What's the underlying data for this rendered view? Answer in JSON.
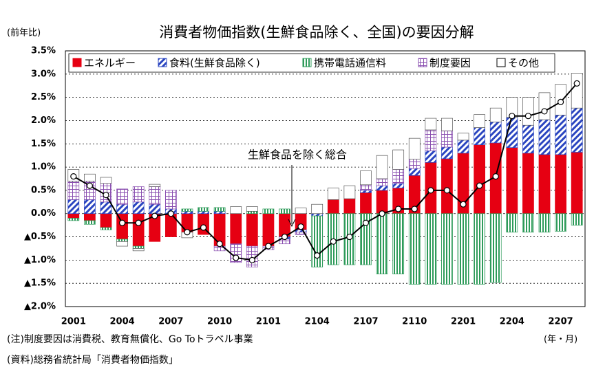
{
  "chart_data": {
    "type": "bar",
    "stacked": true,
    "title": "消費者物価指数(生鮮食品除く、全国)の要因分解",
    "y_label": "(前年比)",
    "x_label": "(年・月)",
    "categories": [
      "2001",
      null,
      null,
      "2004",
      null,
      null,
      "2007",
      null,
      null,
      "2010",
      null,
      null,
      "2101",
      null,
      null,
      "2104",
      null,
      null,
      "2107",
      null,
      null,
      "2110",
      null,
      null,
      "2201",
      null,
      null,
      "2204",
      null,
      null,
      "2207",
      null
    ],
    "series": [
      {
        "name": "エネルギー",
        "color": "#e60012",
        "pattern": "solid",
        "values": [
          -0.1,
          -0.15,
          -0.3,
          -0.55,
          -0.7,
          -0.6,
          -0.5,
          -0.4,
          -0.45,
          -0.7,
          -0.65,
          -0.7,
          -0.7,
          -0.5,
          -0.35,
          0,
          0.3,
          0.32,
          0.45,
          0.5,
          0.55,
          0.82,
          1.1,
          1.18,
          1.3,
          1.48,
          1.52,
          1.42,
          1.3,
          1.27,
          1.27,
          1.32
        ]
      },
      {
        "name": "食料(生鮮食品除く)",
        "color": "#2a45c0",
        "pattern": "diagonal",
        "values": [
          0.3,
          0.3,
          0.25,
          0.2,
          0.25,
          0.2,
          0.1,
          0.05,
          0.05,
          0.05,
          0,
          0,
          0,
          -0.05,
          -0.05,
          -0.05,
          0,
          0,
          0.05,
          0.1,
          0.1,
          0.15,
          0.25,
          0.25,
          0.28,
          0.37,
          0.45,
          0.65,
          0.6,
          0.75,
          0.85,
          0.95
        ]
      },
      {
        "name": "携帯電話通信料",
        "color": "#2e9b5a",
        "pattern": "vertical",
        "values": [
          -0.05,
          -0.08,
          -0.05,
          -0.05,
          -0.05,
          0,
          0,
          0.05,
          0.08,
          0.08,
          0,
          0.05,
          0.1,
          0.1,
          0,
          -1.1,
          -1.1,
          -1.1,
          -1.1,
          -1.3,
          -1.3,
          -1.52,
          -1.52,
          -1.52,
          -1.52,
          -1.52,
          -1.48,
          -0.4,
          -0.4,
          -0.4,
          -0.38,
          -0.25
        ]
      },
      {
        "name": "制度要因",
        "color": "#8a4fb0",
        "pattern": "grid",
        "values": [
          0.4,
          0.4,
          0.4,
          0.33,
          0.33,
          0.38,
          0.4,
          0,
          0,
          -0.1,
          -0.4,
          -0.45,
          -0.08,
          -0.1,
          -0.05,
          0,
          0,
          0,
          0.12,
          0.15,
          0.3,
          0.2,
          0.45,
          0.35,
          0,
          0,
          0,
          0,
          0,
          0,
          0,
          0
        ]
      },
      {
        "name": "その他",
        "color": "#ffffff",
        "pattern": "solid",
        "values": [
          0.25,
          0.15,
          0.13,
          -0.1,
          -0.05,
          0.05,
          0,
          -0.12,
          0,
          0,
          0.15,
          0.1,
          0,
          0,
          0.12,
          0.2,
          0.25,
          0.28,
          0.3,
          0.5,
          0.42,
          0.45,
          0.25,
          0.27,
          0.15,
          0.28,
          0.3,
          0.43,
          0.6,
          0.58,
          0.66,
          0.75
        ]
      }
    ],
    "line": {
      "name": "生鮮食品を除く総合",
      "color": "#000000",
      "values": [
        0.8,
        0.6,
        0.4,
        -0.2,
        -0.2,
        -0.05,
        0,
        -0.4,
        -0.3,
        -0.65,
        -0.95,
        -1.0,
        -0.7,
        -0.5,
        -0.28,
        -0.9,
        -0.6,
        -0.5,
        -0.2,
        0,
        0.1,
        0.1,
        0.5,
        0.5,
        0.2,
        0.6,
        0.8,
        2.1,
        2.1,
        2.2,
        2.4,
        2.8
      ]
    },
    "ylim": [
      -2.0,
      3.5
    ],
    "yticks": [
      {
        "value": 3.5,
        "label": "3.5%"
      },
      {
        "value": 3.0,
        "label": "3.0%"
      },
      {
        "value": 2.5,
        "label": "2.5%"
      },
      {
        "value": 2.0,
        "label": "2.0%"
      },
      {
        "value": 1.5,
        "label": "1.5%"
      },
      {
        "value": 1.0,
        "label": "1.0%"
      },
      {
        "value": 0.5,
        "label": "0.5%"
      },
      {
        "value": 0.0,
        "label": "0.0%"
      },
      {
        "value": -0.5,
        "label": "▲0.5%"
      },
      {
        "value": -1.0,
        "label": "▲1.0%"
      },
      {
        "value": -1.5,
        "label": "▲1.5%"
      },
      {
        "value": -2.0,
        "label": "▲2.0%"
      }
    ],
    "grid": true,
    "notes": [
      "(注)制度要因は消費税、教育無償化、Go Toトラベル事業",
      "(資料)総務省統計局「消費者物価指数」"
    ]
  }
}
